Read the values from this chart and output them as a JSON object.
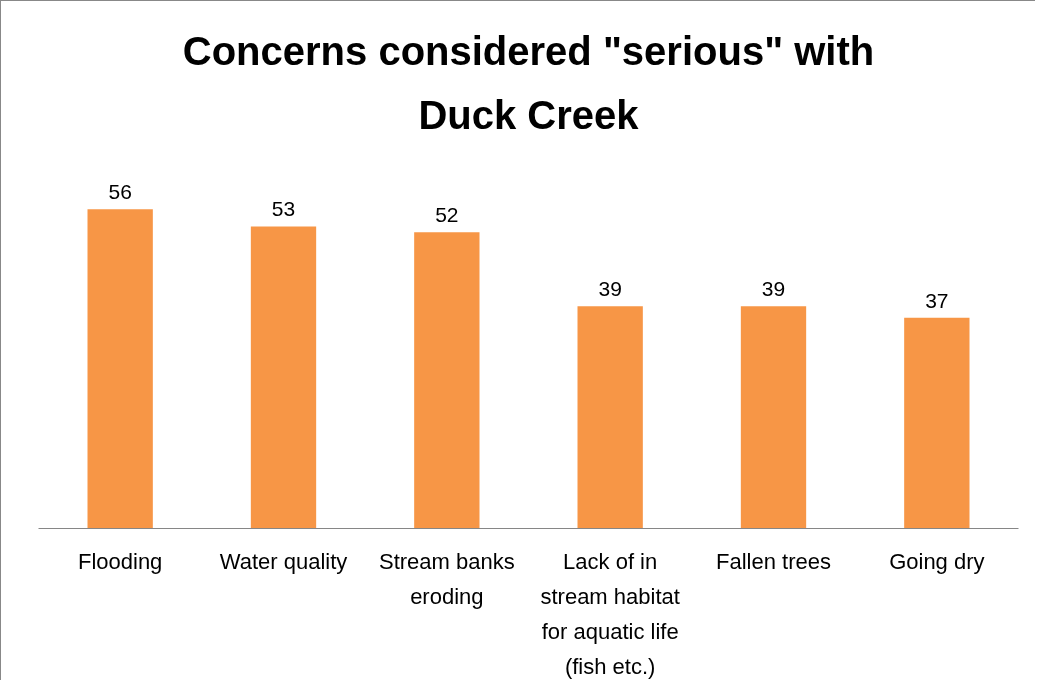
{
  "chart_data": {
    "type": "bar",
    "title": "Concerns considered \"serious\" with Duck Creek",
    "categories": [
      "Flooding",
      "Water quality",
      "Stream banks eroding",
      "Lack of in stream habitat for aquatic life (fish etc.)",
      "Fallen trees",
      "Going dry"
    ],
    "values": [
      56,
      53,
      52,
      39,
      39,
      37
    ],
    "color": "#f79646",
    "data_labels": true
  }
}
